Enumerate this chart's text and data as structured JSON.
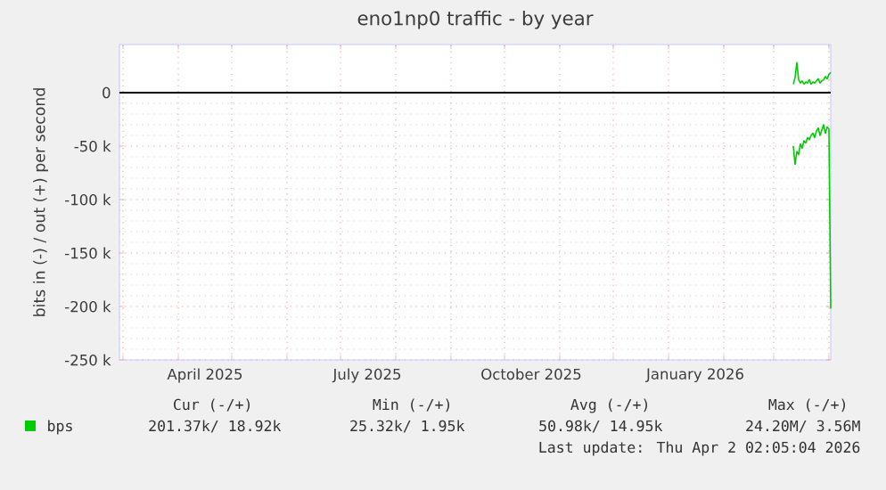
{
  "chart_data": {
    "type": "line",
    "title": "eno1np0 traffic - by year",
    "ylabel": "bits in (-) / out (+) per second",
    "x": [
      "2026-03-12",
      "2026-03-13",
      "2026-03-14",
      "2026-03-15",
      "2026-03-16",
      "2026-03-17",
      "2026-03-18",
      "2026-03-19",
      "2026-03-20",
      "2026-03-21",
      "2026-03-22",
      "2026-03-23",
      "2026-03-24",
      "2026-03-25",
      "2026-03-26",
      "2026-03-27",
      "2026-03-28",
      "2026-03-29",
      "2026-03-30",
      "2026-03-31",
      "2026-04-01",
      "2026-04-02"
    ],
    "series": [
      {
        "name": "bps",
        "color": "#00cc00",
        "values": [
          -50000,
          -67000,
          -55000,
          -58000,
          -48000,
          -52000,
          -45000,
          -47000,
          -42000,
          -44000,
          -40000,
          -38000,
          -42000,
          -36000,
          -33000,
          -40000,
          -35000,
          -30000,
          -38000,
          -32000,
          -34000,
          -202000
        ]
      },
      {
        "color": "#00cc00",
        "values": [
          8000,
          14000,
          28000,
          12000,
          9000,
          11000,
          8000,
          10000,
          9000,
          12000,
          8000,
          10000,
          9000,
          11000,
          13000,
          9000,
          11000,
          12000,
          15000,
          13000,
          17000,
          19000
        ]
      }
    ],
    "xlim": [
      "2025-02-27",
      "2026-04-02"
    ],
    "xticks": [
      {
        "value": "2025-03-01",
        "label": null
      },
      {
        "value": "2025-04-01",
        "label": null
      },
      {
        "value": "2025-04-16",
        "label": "April 2025"
      },
      {
        "value": "2025-05-01",
        "label": null
      },
      {
        "value": "2025-06-01",
        "label": null
      },
      {
        "value": "2025-07-01",
        "label": null
      },
      {
        "value": "2025-07-16",
        "label": "July 2025"
      },
      {
        "value": "2025-08-01",
        "label": null
      },
      {
        "value": "2025-09-01",
        "label": null
      },
      {
        "value": "2025-10-01",
        "label": null
      },
      {
        "value": "2025-10-16",
        "label": "October 2025"
      },
      {
        "value": "2025-11-01",
        "label": null
      },
      {
        "value": "2025-12-01",
        "label": null
      },
      {
        "value": "2026-01-01",
        "label": null
      },
      {
        "value": "2026-01-16",
        "label": "January 2026"
      },
      {
        "value": "2026-02-01",
        "label": null
      },
      {
        "value": "2026-03-01",
        "label": null
      },
      {
        "value": "2026-04-01",
        "label": null
      }
    ],
    "ylim": [
      -250000,
      45000
    ],
    "yticks": [
      {
        "value": -250000,
        "label": "-250 k"
      },
      {
        "value": -200000,
        "label": "-200 k"
      },
      {
        "value": -150000,
        "label": "-150 k"
      },
      {
        "value": -100000,
        "label": "-100 k"
      },
      {
        "value": -50000,
        "label": "-50 k"
      },
      {
        "value": 0,
        "label": "0"
      }
    ],
    "grid": true,
    "legend": "bottom",
    "ref_lines": [
      {
        "axis": "y",
        "value": 0,
        "color": "#000000"
      }
    ],
    "annotations": [
      "Cur (-/+)",
      "Min (-/+)",
      "Avg (-/+)",
      "Max (-/+)",
      "201.37k/ 18.92k",
      "25.32k/   1.95k",
      "50.98k/ 14.95k",
      "24.20M/   3.56M",
      "Last update: Thu Apr  2 02:05:04 2026"
    ]
  }
}
